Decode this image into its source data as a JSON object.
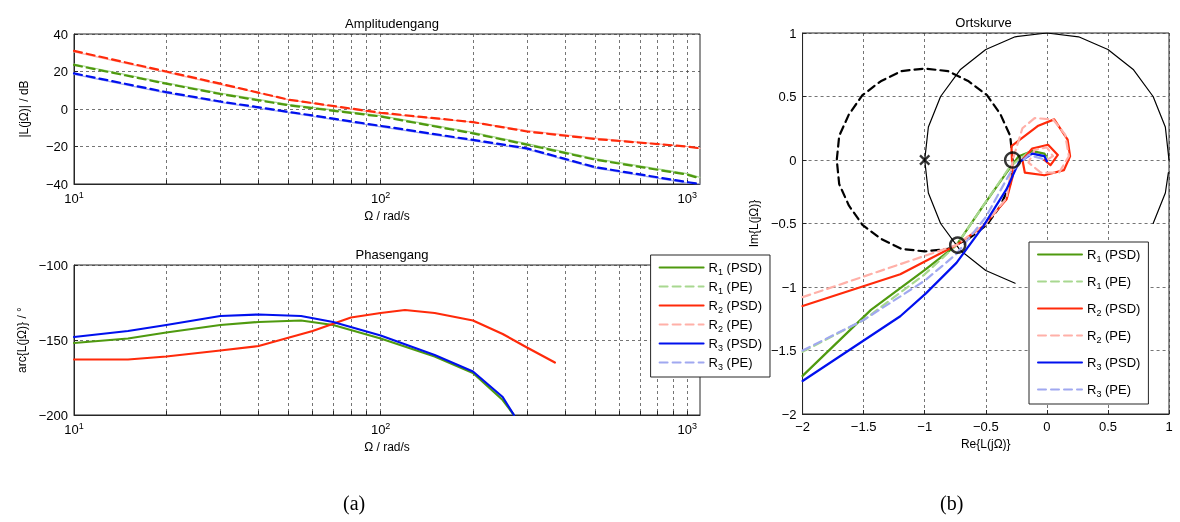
{
  "chart_data": [
    {
      "type": "line",
      "title": "Amplitudengang",
      "xlabel": "Ω / rad/s",
      "ylabel": "|L(jΩ)| / dB",
      "log": "x",
      "grid": true,
      "legend": false,
      "marker": "none",
      "xlim": [
        10,
        1100
      ],
      "xticks": [
        {
          "value": 10,
          "label": "10$^{1}$"
        },
        {
          "value": 20,
          "label": null
        },
        {
          "value": 30,
          "label": null
        },
        {
          "value": 40,
          "label": null
        },
        {
          "value": 50,
          "label": null
        },
        {
          "value": 60,
          "label": null
        },
        {
          "value": 70,
          "label": null
        },
        {
          "value": 80,
          "label": null
        },
        {
          "value": 90,
          "label": null
        },
        {
          "value": 100,
          "label": "10$^{2}$"
        },
        {
          "value": 200,
          "label": null
        },
        {
          "value": 300,
          "label": null
        },
        {
          "value": 400,
          "label": null
        },
        {
          "value": 500,
          "label": null
        },
        {
          "value": 600,
          "label": null
        },
        {
          "value": 700,
          "label": null
        },
        {
          "value": 800,
          "label": null
        },
        {
          "value": 900,
          "label": null
        },
        {
          "value": 1000,
          "label": "10$^{3}$"
        }
      ],
      "ylim": [
        -40,
        40
      ],
      "yticks": [
        -40,
        -20,
        0,
        20,
        40
      ],
      "x": [
        10,
        20,
        30,
        50,
        100,
        200,
        300,
        500,
        1000,
        1100
      ],
      "series": [
        {
          "color": "#a8d890",
          "line_style": "solid",
          "values": [
            24,
            14,
            8.5,
            2.5,
            -3.5,
            -12.5,
            -18.5,
            -26.5,
            -34.5,
            -36.5
          ]
        },
        {
          "color": "#4f9a0f",
          "line_style": "dashed",
          "values": [
            23.5,
            13.5,
            8,
            2,
            -4,
            -13,
            -19,
            -27,
            -35,
            -37
          ]
        },
        {
          "color": "#ffb0a8",
          "line_style": "solid",
          "values": [
            30.5,
            19.5,
            13,
            5,
            -2.5,
            -7,
            -11.5,
            -15.5,
            -20,
            -21
          ]
        },
        {
          "color": "#ff2a0a",
          "line_style": "dashed",
          "values": [
            31,
            20,
            13.5,
            5,
            -2,
            -7,
            -12,
            -16,
            -20,
            -21
          ]
        },
        {
          "color": "#a0a8f0",
          "line_style": "solid",
          "values": [
            18.5,
            8.5,
            3.5,
            -2,
            -9.5,
            -17,
            -21.5,
            -31.5,
            -39.5,
            -40
          ]
        },
        {
          "color": "#0010ee",
          "line_style": "dashed",
          "values": [
            19,
            9,
            4,
            -1.5,
            -9,
            -16.5,
            -21,
            -31,
            -39,
            -40
          ]
        }
      ]
    },
    {
      "type": "line",
      "title": "Phasengang",
      "xlabel": "Ω / rad/s",
      "ylabel": "arc{L(jΩ)} / °",
      "log": "x",
      "grid": true,
      "legend": "top right",
      "marker": "none",
      "annotations": [
        "(a)"
      ],
      "xlim": [
        10,
        1100
      ],
      "xticks": [
        {
          "value": 10,
          "label": "10$^{1}$"
        },
        {
          "value": 20,
          "label": null
        },
        {
          "value": 30,
          "label": null
        },
        {
          "value": 40,
          "label": null
        },
        {
          "value": 50,
          "label": null
        },
        {
          "value": 60,
          "label": null
        },
        {
          "value": 70,
          "label": null
        },
        {
          "value": 80,
          "label": null
        },
        {
          "value": 90,
          "label": null
        },
        {
          "value": 100,
          "label": "10$^{2}$"
        },
        {
          "value": 200,
          "label": null
        },
        {
          "value": 300,
          "label": null
        },
        {
          "value": 400,
          "label": null
        },
        {
          "value": 500,
          "label": null
        },
        {
          "value": 600,
          "label": null
        },
        {
          "value": 700,
          "label": null
        },
        {
          "value": 800,
          "label": null
        },
        {
          "value": 900,
          "label": null
        },
        {
          "value": 1000,
          "label": "10$^{3}$"
        }
      ],
      "ylim": [
        -200,
        -100
      ],
      "yticks": [
        -200,
        -150,
        -100
      ],
      "series": [
        {
          "name": "R$_{1}$ (PSD)",
          "color": "#4f9a0f",
          "line_style": "solid",
          "x": [
            10,
            15,
            20,
            30,
            40,
            55,
            70,
            100,
            150,
            200,
            250,
            272
          ],
          "values": [
            -152,
            -149,
            -145,
            -140,
            -138,
            -137,
            -140,
            -149,
            -161,
            -172,
            -190,
            -200
          ]
        },
        {
          "name": "R$_{1}$ (PE)",
          "color": "#a8d890",
          "line_style": "dashed"
        },
        {
          "name": "R$_{2}$ (PSD)",
          "color": "#ff2a0a",
          "line_style": "solid",
          "x": [
            10,
            15,
            20,
            30,
            40,
            60,
            80,
            100,
            120,
            150,
            200,
            250,
            300,
            370
          ],
          "values": [
            -163,
            -163,
            -161,
            -157,
            -154,
            -144,
            -135,
            -132,
            -130,
            -132,
            -137,
            -146,
            -155,
            -165
          ]
        },
        {
          "name": "R$_{2}$ (PE)",
          "color": "#ffb0a8",
          "line_style": "dashed"
        },
        {
          "name": "R$_{3}$ (PSD)",
          "color": "#0010ee",
          "line_style": "solid",
          "x": [
            10,
            15,
            20,
            30,
            40,
            55,
            70,
            100,
            150,
            200,
            250,
            272
          ],
          "values": [
            -148,
            -144,
            -140,
            -134,
            -133,
            -134,
            -138,
            -147,
            -160,
            -171,
            -188,
            -200
          ]
        },
        {
          "name": "R$_{3}$ (PE)",
          "color": "#a0a8f0",
          "line_style": "dashed"
        }
      ]
    },
    {
      "type": "line",
      "title": "Ortskurve",
      "xlabel": "Re{L(jΩ)}",
      "ylabel": "Im{L(jΩ)}",
      "grid": true,
      "legend": "bottom right",
      "marker": "none",
      "annotations": [
        "(b)"
      ],
      "xlim": [
        -2,
        1
      ],
      "xticks": [
        -2,
        -1.5,
        -1,
        -0.5,
        0,
        0.5,
        1
      ],
      "ylim": [
        -2,
        1
      ],
      "yticks": [
        -2,
        -1.5,
        -1,
        -0.5,
        0,
        0.5,
        1
      ],
      "series": [
        {
          "color": "#000000",
          "line_style": "solid",
          "x": [
            1,
            0.97,
            0.87,
            0.71,
            0.5,
            0.26,
            0,
            -0.26,
            -0.5,
            -0.71,
            -0.87,
            -0.97,
            -1,
            -0.97,
            -0.87,
            -0.71,
            -0.5,
            -0.26,
            0,
            0.26,
            0.5,
            0.71,
            0.87,
            0.97,
            0.995
          ],
          "values": [
            0,
            0.26,
            0.5,
            0.71,
            0.87,
            0.97,
            1,
            0.97,
            0.87,
            0.71,
            0.5,
            0.26,
            0,
            -0.26,
            -0.5,
            -0.71,
            -0.87,
            -0.97,
            null,
            null,
            null,
            null,
            -0.5,
            -0.26,
            -0.1
          ]
        },
        {
          "color": "#000000",
          "line_style": "dashed",
          "x": [
            -0.28,
            -0.3,
            -0.38,
            -0.49,
            -0.64,
            -0.81,
            -1,
            -1.19,
            -1.36,
            -1.51,
            -1.62,
            -1.7,
            -1.72,
            -1.7,
            -1.62,
            -1.51,
            -1.36,
            -1.19,
            -1,
            -0.81,
            -0.64,
            -0.49,
            -0.38,
            -0.3,
            -0.285
          ],
          "values": [
            0,
            0.19,
            0.36,
            0.51,
            0.62,
            0.7,
            0.72,
            0.7,
            0.62,
            0.51,
            0.36,
            0.19,
            0,
            -0.19,
            -0.36,
            -0.51,
            -0.62,
            -0.7,
            -0.72,
            -0.7,
            -0.62,
            -0.51,
            -0.36,
            -0.19,
            -0.08
          ]
        },
        {
          "name": "R$_{1}$ (PSD)",
          "color": "#4f9a0f",
          "line_style": "solid",
          "x": [
            -2,
            -1.44,
            -0.99,
            -0.74,
            -0.52,
            -0.33,
            -0.23,
            -0.12,
            -0.02,
            0
          ],
          "values": [
            -1.7,
            -1.18,
            -0.86,
            -0.67,
            -0.36,
            -0.1,
            0.03,
            0.07,
            0.05,
            0.02
          ]
        },
        {
          "name": "R$_{1}$ (PE)",
          "color": "#a8d890",
          "line_style": "dashed",
          "x": [
            -2,
            -1.5,
            -1,
            -0.74,
            -0.5,
            -0.3,
            -0.15,
            0
          ],
          "values": [
            -1.51,
            -1.26,
            -0.9,
            -0.67,
            -0.33,
            -0.05,
            0.06,
            0.02
          ]
        },
        {
          "name": "R$_{2}$ (PSD)",
          "color": "#ff2a0a",
          "line_style": "solid",
          "x": [
            -2,
            -1.2,
            -0.96,
            -0.74,
            -0.52,
            -0.33,
            -0.28,
            -0.29,
            -0.18,
            -0.07,
            0.06,
            0.17,
            0.19,
            0.14,
            -0.02,
            -0.18,
            -0.2,
            -0.12,
            0.01,
            0.09,
            0.03,
            -0.02
          ],
          "values": [
            -1.15,
            -0.9,
            -0.78,
            -0.67,
            -0.52,
            -0.31,
            -0.13,
            0.11,
            0.19,
            0.27,
            0.32,
            0.16,
            0.03,
            -0.08,
            -0.12,
            -0.1,
            0,
            0.09,
            0.12,
            0.04,
            -0.04,
            0
          ]
        },
        {
          "name": "R$_{2}$ (PE)",
          "color": "#ffb0a8",
          "line_style": "dashed",
          "x": [
            -2,
            -1.2,
            -0.74,
            -0.5,
            -0.33,
            -0.28,
            -0.2,
            -0.1,
            0.05,
            0.15,
            0.18,
            0.1,
            -0.05,
            -0.15,
            -0.1,
            0,
            0.05,
            0
          ],
          "values": [
            -1.08,
            -0.82,
            -0.67,
            -0.5,
            -0.3,
            0,
            0.25,
            0.33,
            0.32,
            0.2,
            0.03,
            -0.1,
            -0.1,
            -0.02,
            0.08,
            0.1,
            0.03,
            0
          ]
        },
        {
          "name": "R$_{3}$ (PSD)",
          "color": "#0010ee",
          "line_style": "solid",
          "x": [
            -2,
            -1.2,
            -0.99,
            -0.74,
            -0.52,
            -0.33,
            -0.23,
            -0.12,
            -0.02,
            0
          ],
          "values": [
            -1.74,
            -1.23,
            -1.05,
            -0.81,
            -0.52,
            -0.23,
            -0.02,
            0.05,
            0.03,
            -0.01
          ]
        },
        {
          "name": "R$_{3}$ (PE)",
          "color": "#a0a8f0",
          "line_style": "dashed",
          "x": [
            -2,
            -1.5,
            -1,
            -0.74,
            -0.5,
            -0.3,
            -0.15,
            0
          ],
          "values": [
            -1.5,
            -1.26,
            -0.95,
            -0.74,
            -0.45,
            -0.1,
            0.04,
            0
          ]
        },
        {
          "type": "scatter",
          "color": "#000000",
          "marker": "circle",
          "x": [
            -0.28,
            -0.73
          ],
          "values": [
            0,
            -0.67
          ]
        },
        {
          "type": "scatter",
          "color": "#000000",
          "marker": "cross",
          "x": [
            -1
          ],
          "values": [
            0
          ]
        }
      ]
    }
  ]
}
